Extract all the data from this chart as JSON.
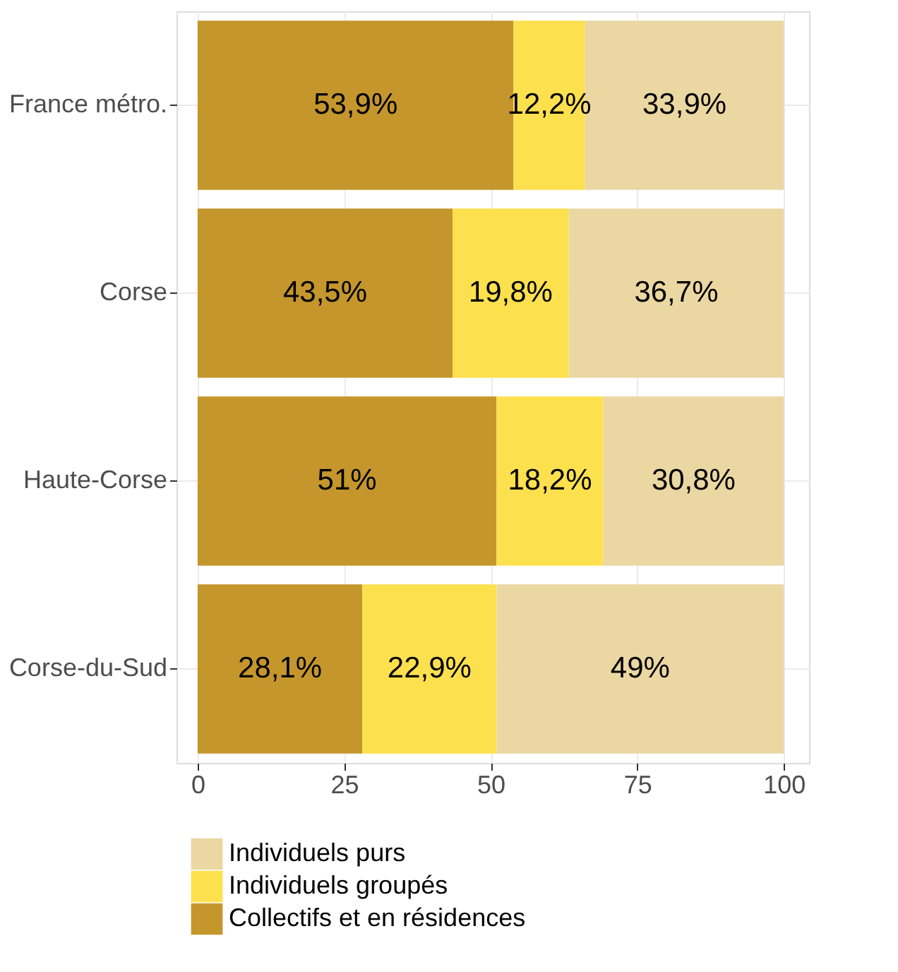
{
  "chart_data": {
    "type": "bar",
    "orientation": "horizontal",
    "stacked": true,
    "categories": [
      "France métro.",
      "Corse",
      "Haute-Corse",
      "Corse-du-Sud"
    ],
    "series": [
      {
        "name": "Collectifs et en résidences",
        "color": "#c4962c",
        "values": [
          53.9,
          43.5,
          51,
          28.1
        ],
        "value_labels": [
          "53,9%",
          "43,5%",
          "51%",
          "28,1%"
        ]
      },
      {
        "name": "Individuels groupés",
        "color": "#fde04e",
        "values": [
          12.2,
          19.8,
          18.2,
          22.9
        ],
        "value_labels": [
          "12,2%",
          "19,8%",
          "18,2%",
          "22,9%"
        ]
      },
      {
        "name": "Individuels purs",
        "color": "#ead7a2",
        "values": [
          33.9,
          36.7,
          30.8,
          49
        ],
        "value_labels": [
          "33,9%",
          "36,7%",
          "30,8%",
          "49%"
        ]
      }
    ],
    "xlim": [
      -3.6,
      104.3
    ],
    "xticks": [
      0,
      25,
      50,
      75,
      100
    ],
    "grid": true,
    "legend": "bottom"
  }
}
